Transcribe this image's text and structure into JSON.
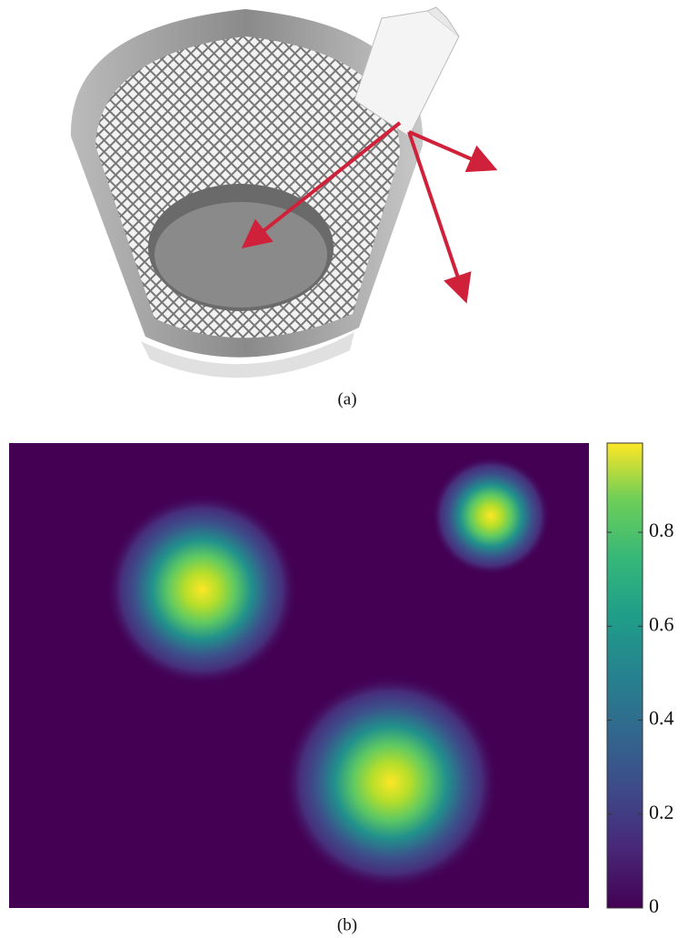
{
  "figure": {
    "panels": [
      {
        "caption": "(a)"
      },
      {
        "caption": "(b)",
        "colorbar": {
          "lim": [
            0,
            0.99
          ],
          "ticks": [
            0,
            0.2,
            0.4,
            0.6,
            0.8
          ]
        }
      }
    ]
  }
}
